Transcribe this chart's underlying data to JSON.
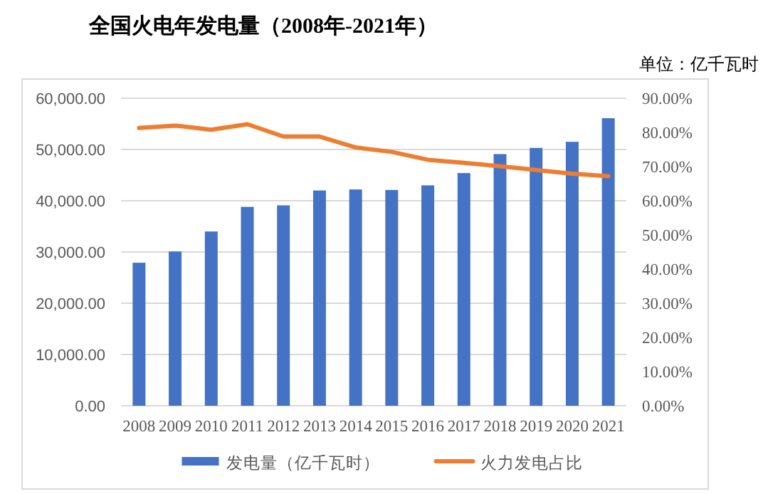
{
  "chart_data": {
    "type": "bar",
    "title": "全国火电年发电量（2008年-2021年）",
    "subtitle": "单位：亿千瓦时",
    "categories": [
      "2008",
      "2009",
      "2010",
      "2011",
      "2012",
      "2013",
      "2014",
      "2015",
      "2016",
      "2017",
      "2018",
      "2019",
      "2020",
      "2021"
    ],
    "series": [
      {
        "name": "发电量（亿千瓦时）",
        "color": "#4472c4",
        "values": [
          27900,
          30100,
          34000,
          38800,
          39100,
          42000,
          42200,
          42100,
          43000,
          45400,
          49100,
          50300,
          51500,
          56100
        ]
      },
      {
        "name": "火力发电占比",
        "type": "line",
        "axis": "y2",
        "color": "#ed7d31",
        "values": [
          81.3,
          82.0,
          80.8,
          82.4,
          78.8,
          78.8,
          75.6,
          74.3,
          72.0,
          71.1,
          70.1,
          69.0,
          67.9,
          67.2
        ]
      }
    ],
    "ylim": [
      0,
      60000
    ],
    "yticks": [
      {
        "value": 0,
        "label": "0.00"
      },
      {
        "value": 10000,
        "label": "10,000.00"
      },
      {
        "value": 20000,
        "label": "20,000.00"
      },
      {
        "value": 30000,
        "label": "30,000.00"
      },
      {
        "value": 40000,
        "label": "40,000.00"
      },
      {
        "value": 50000,
        "label": "50,000.00"
      },
      {
        "value": 60000,
        "label": "60,000.00"
      }
    ],
    "y2lim": [
      0,
      90
    ],
    "y2ticks": [
      {
        "value": 0,
        "label": "0.00%"
      },
      {
        "value": 10,
        "label": "10.00%"
      },
      {
        "value": 20,
        "label": "20.00%"
      },
      {
        "value": 30,
        "label": "30.00%"
      },
      {
        "value": 40,
        "label": "40.00%"
      },
      {
        "value": 50,
        "label": "50.00%"
      },
      {
        "value": 60,
        "label": "60.00%"
      },
      {
        "value": 70,
        "label": "70.00%"
      },
      {
        "value": 80,
        "label": "80.00%"
      },
      {
        "value": 90,
        "label": "90.00%"
      }
    ],
    "grid": "y",
    "legend": "bottom"
  }
}
